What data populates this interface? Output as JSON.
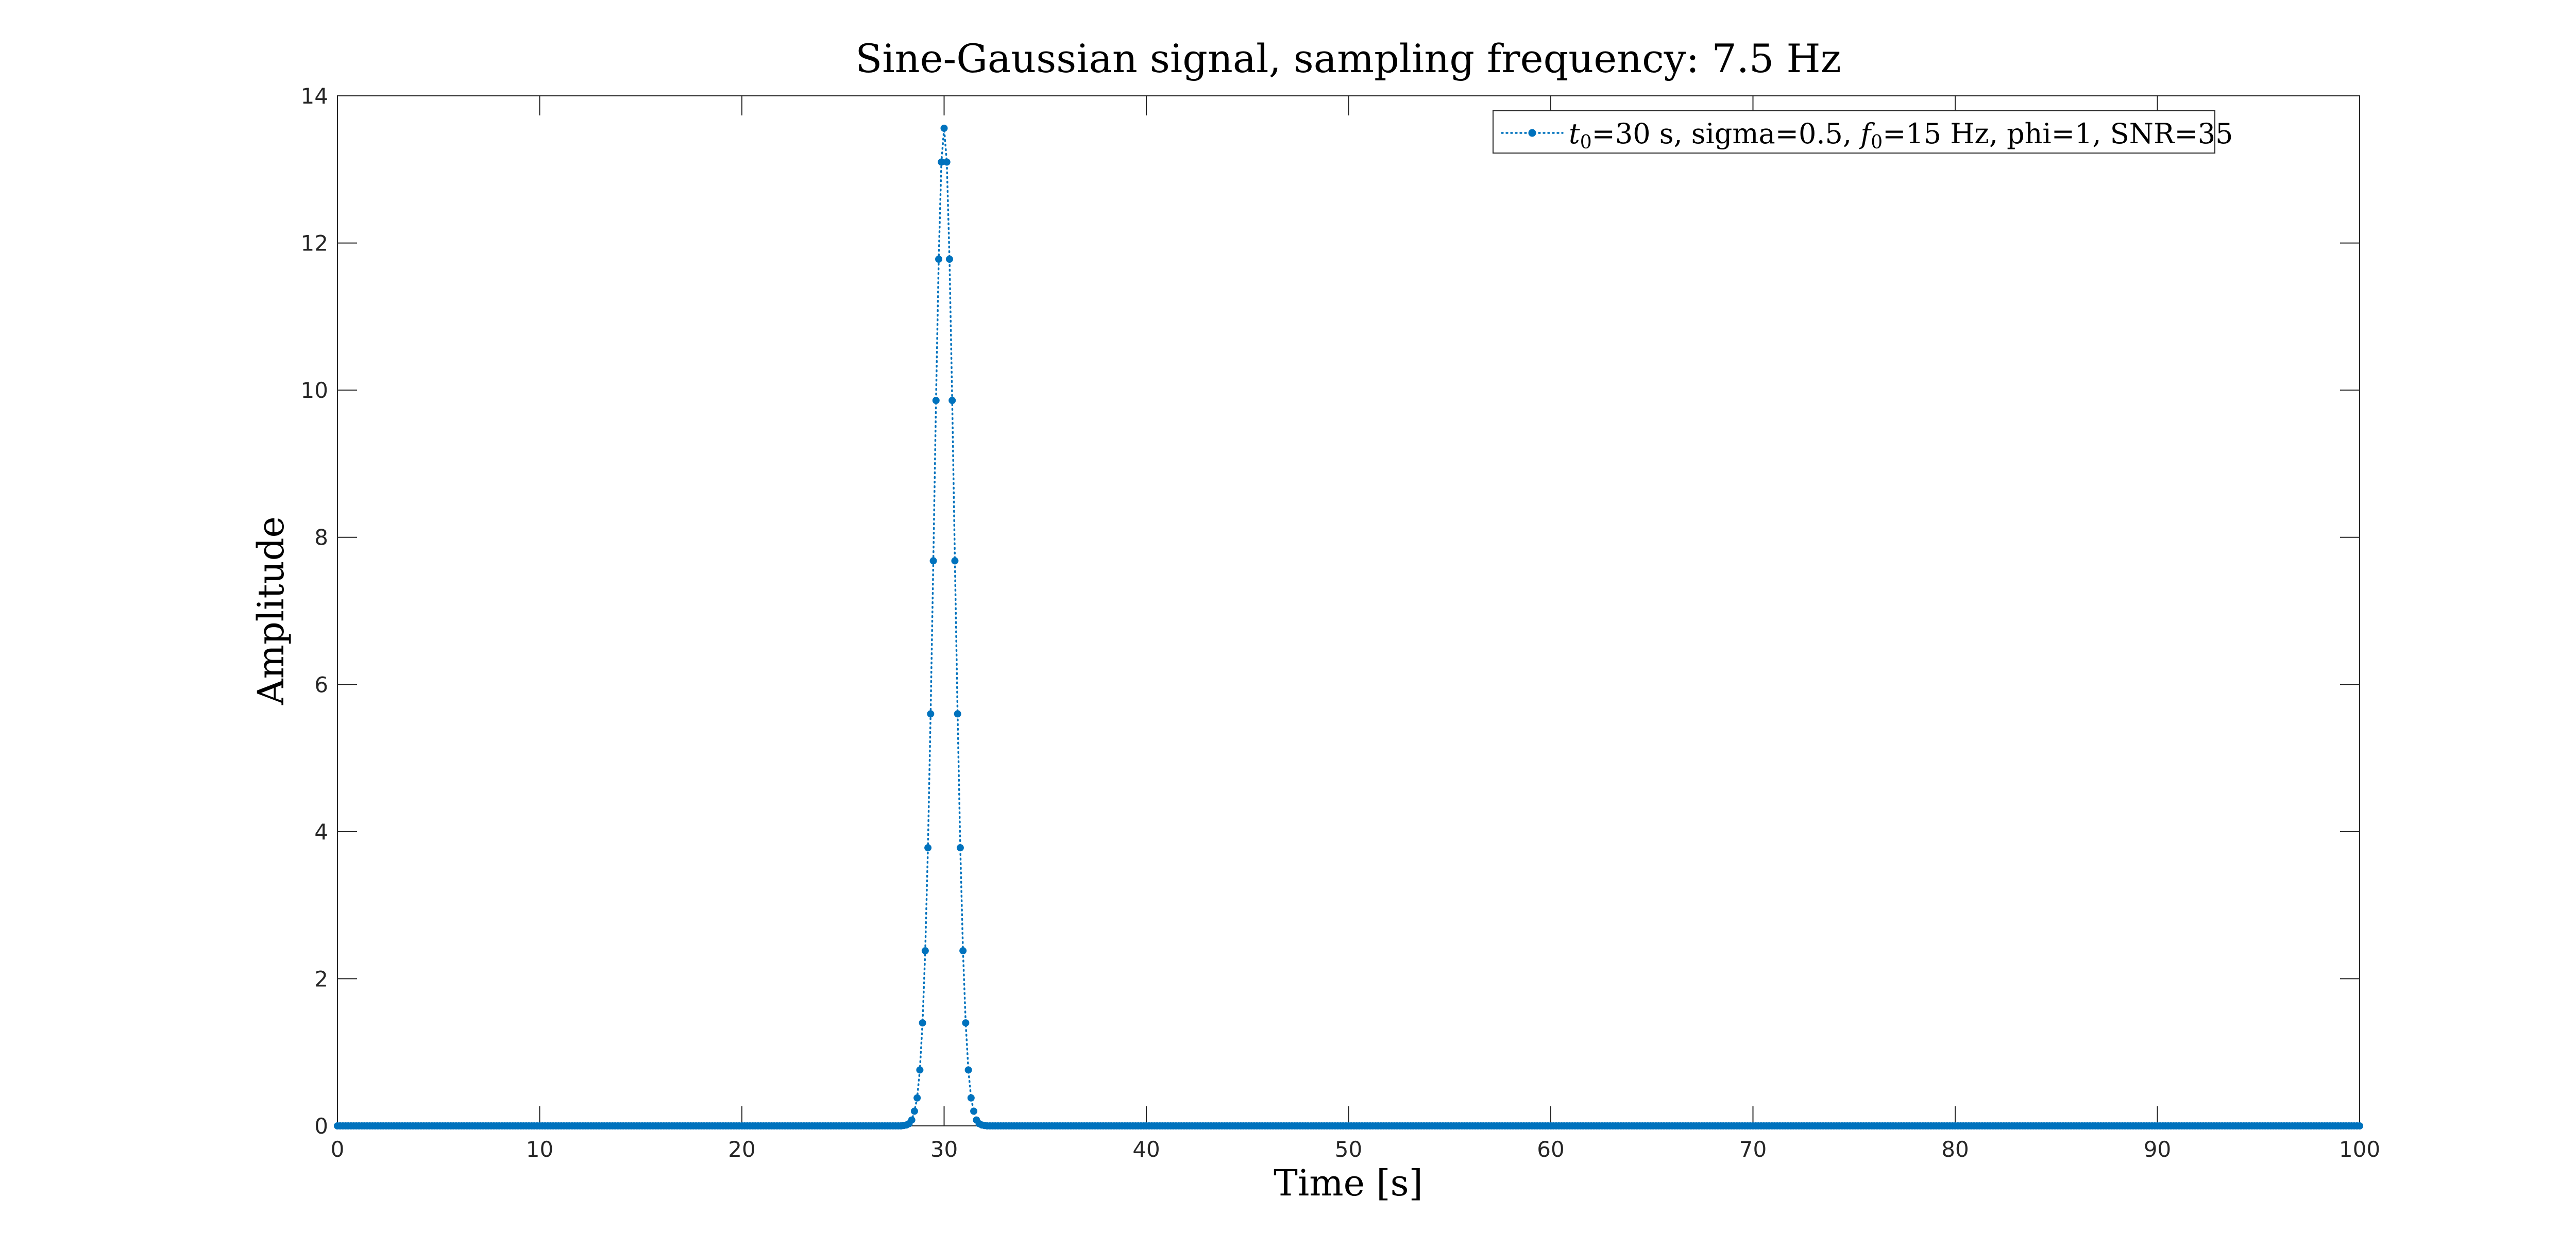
{
  "chart_data": {
    "type": "line",
    "title": "Sine-Gaussian signal, sampling frequency: 7.5 Hz",
    "xlabel": "Time [s]",
    "ylabel": "Amplitude",
    "xlim": [
      0,
      100
    ],
    "ylim": [
      0,
      14
    ],
    "x_ticks": [
      0,
      10,
      20,
      30,
      40,
      50,
      60,
      70,
      80,
      90,
      100
    ],
    "y_ticks": [
      0,
      2,
      4,
      6,
      8,
      10,
      12,
      14
    ],
    "grid": false,
    "legend_position": "top-right",
    "legend": {
      "t_var": "t",
      "t_sub": "0",
      "t_text": "=30 s, sigma=0.5, ",
      "f_var": "f",
      "f_sub": "0",
      "f_text": "=15 Hz, phi=1, SNR=35"
    },
    "series": [
      {
        "color": "#0072BD",
        "line_style": "dotted",
        "marker": "point",
        "sampling_frequency": 7.5,
        "x_start": 0,
        "x_end": 100,
        "peak_x": 30,
        "peak_amplitude": 13.56,
        "sigma": 0.5,
        "points": [
          [
            28.0,
            0.005
          ],
          [
            28.1333,
            0.012
          ],
          [
            28.2667,
            0.03
          ],
          [
            28.4,
            0.08
          ],
          [
            28.5333,
            0.2
          ],
          [
            28.6667,
            0.38
          ],
          [
            28.8,
            0.76
          ],
          [
            28.9333,
            1.4
          ],
          [
            29.0667,
            2.38
          ],
          [
            29.2,
            3.78
          ],
          [
            29.3333,
            5.6
          ],
          [
            29.4667,
            7.68
          ],
          [
            29.6,
            9.86
          ],
          [
            29.7333,
            11.78
          ],
          [
            29.8667,
            13.1
          ],
          [
            30.0,
            13.56
          ],
          [
            30.1333,
            13.1
          ],
          [
            30.2667,
            11.78
          ],
          [
            30.4,
            9.86
          ],
          [
            30.5333,
            7.68
          ],
          [
            30.6667,
            5.6
          ],
          [
            30.8,
            3.78
          ],
          [
            30.9333,
            2.38
          ],
          [
            31.0667,
            1.4
          ],
          [
            31.2,
            0.76
          ],
          [
            31.3333,
            0.38
          ],
          [
            31.4667,
            0.2
          ],
          [
            31.6,
            0.08
          ],
          [
            31.7333,
            0.03
          ],
          [
            31.8667,
            0.012
          ],
          [
            32.0,
            0.005
          ]
        ]
      }
    ]
  }
}
